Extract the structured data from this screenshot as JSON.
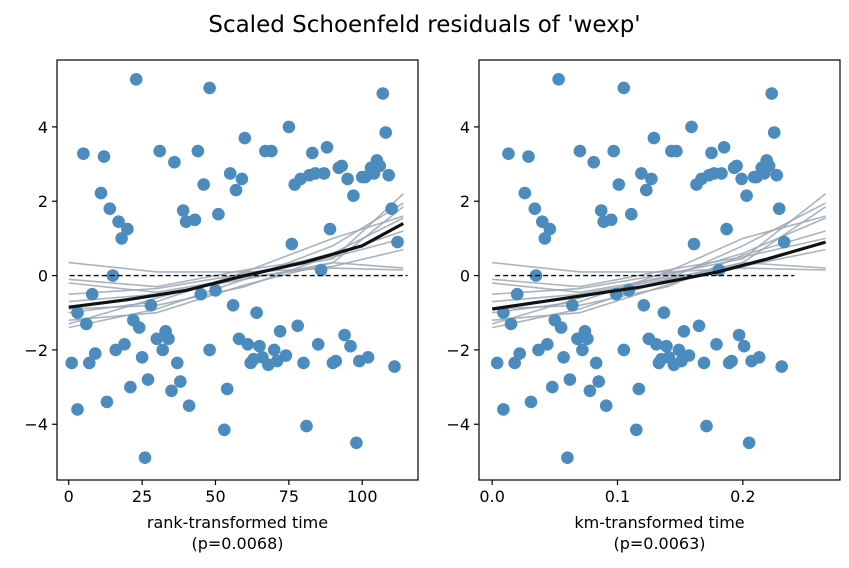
{
  "title": "Scaled Schoenfeld residuals of 'wexp'",
  "colors": {
    "points": "#4b8bbe",
    "lowess": "#111111",
    "bootstrap": "#9aa7b4",
    "zero_line": "#000000"
  },
  "chart_data": [
    {
      "type": "scatter",
      "xlabel": "rank-transformed time",
      "note": "(p=0.0068)",
      "xlim": [
        -4,
        119
      ],
      "ylim": [
        -5.5,
        5.8
      ],
      "xticks": [
        0,
        25,
        50,
        75,
        100
      ],
      "xtick_labels": [
        "0",
        "25",
        "50",
        "75",
        "100"
      ],
      "yticks": [
        -4,
        -2,
        0,
        2,
        4
      ],
      "ytick_labels": [
        "−4",
        "−2",
        "0",
        "2",
        "4"
      ],
      "reference_line_y": 0,
      "points": [
        [
          1,
          -2.35
        ],
        [
          3,
          -3.6
        ],
        [
          3,
          -1.0
        ],
        [
          5,
          3.28
        ],
        [
          6,
          -1.3
        ],
        [
          7,
          -2.35
        ],
        [
          8,
          -0.5
        ],
        [
          9,
          -2.1
        ],
        [
          11,
          2.22
        ],
        [
          12,
          3.2
        ],
        [
          13,
          -3.4
        ],
        [
          14,
          1.8
        ],
        [
          15,
          0.0
        ],
        [
          16,
          -2.0
        ],
        [
          17,
          1.45
        ],
        [
          18,
          1.0
        ],
        [
          19,
          -1.85
        ],
        [
          20,
          1.25
        ],
        [
          21,
          -3.0
        ],
        [
          22,
          -1.2
        ],
        [
          23,
          5.28
        ],
        [
          24,
          -1.4
        ],
        [
          25,
          -2.2
        ],
        [
          26,
          -4.9
        ],
        [
          27,
          -2.8
        ],
        [
          28,
          -0.8
        ],
        [
          30,
          -1.7
        ],
        [
          31,
          3.35
        ],
        [
          32,
          -2.0
        ],
        [
          33,
          -1.5
        ],
        [
          34,
          -1.7
        ],
        [
          35,
          -3.1
        ],
        [
          36,
          3.05
        ],
        [
          37,
          -2.35
        ],
        [
          38,
          -2.85
        ],
        [
          39,
          1.75
        ],
        [
          40,
          1.45
        ],
        [
          41,
          -3.5
        ],
        [
          43,
          1.5
        ],
        [
          44,
          3.35
        ],
        [
          45,
          -0.5
        ],
        [
          46,
          2.45
        ],
        [
          48,
          5.05
        ],
        [
          48,
          -2.0
        ],
        [
          50,
          -0.4
        ],
        [
          51,
          1.65
        ],
        [
          53,
          -4.15
        ],
        [
          54,
          -3.05
        ],
        [
          55,
          2.75
        ],
        [
          56,
          -0.8
        ],
        [
          57,
          2.3
        ],
        [
          58,
          -1.7
        ],
        [
          59,
          2.6
        ],
        [
          60,
          3.7
        ],
        [
          61,
          -1.85
        ],
        [
          62,
          -2.35
        ],
        [
          63,
          -2.25
        ],
        [
          64,
          -1.0
        ],
        [
          65,
          -1.9
        ],
        [
          66,
          -2.2
        ],
        [
          67,
          3.35
        ],
        [
          68,
          -2.4
        ],
        [
          69,
          3.35
        ],
        [
          70,
          -2.0
        ],
        [
          71,
          -2.3
        ],
        [
          72,
          -1.5
        ],
        [
          74,
          -2.15
        ],
        [
          75,
          4.0
        ],
        [
          76,
          0.85
        ],
        [
          77,
          2.45
        ],
        [
          78,
          -1.35
        ],
        [
          79,
          2.6
        ],
        [
          80,
          -2.35
        ],
        [
          81,
          -4.05
        ],
        [
          82,
          2.7
        ],
        [
          83,
          3.3
        ],
        [
          84,
          2.75
        ],
        [
          85,
          -1.85
        ],
        [
          86,
          0.15
        ],
        [
          87,
          2.75
        ],
        [
          88,
          3.45
        ],
        [
          89,
          1.25
        ],
        [
          90,
          -2.35
        ],
        [
          91,
          -2.3
        ],
        [
          92,
          2.9
        ],
        [
          93,
          2.95
        ],
        [
          94,
          -1.6
        ],
        [
          95,
          2.6
        ],
        [
          96,
          -1.9
        ],
        [
          97,
          2.15
        ],
        [
          98,
          -4.5
        ],
        [
          99,
          -2.3
        ],
        [
          100,
          2.65
        ],
        [
          101,
          2.65
        ],
        [
          102,
          -2.2
        ],
        [
          103,
          2.9
        ],
        [
          104,
          2.75
        ],
        [
          105,
          3.1
        ],
        [
          106,
          2.95
        ],
        [
          107,
          4.9
        ],
        [
          108,
          3.85
        ],
        [
          109,
          2.7
        ],
        [
          110,
          1.8
        ],
        [
          111,
          -2.45
        ],
        [
          112,
          0.9
        ]
      ],
      "lowess": [
        [
          0,
          -0.85
        ],
        [
          20,
          -0.65
        ],
        [
          40,
          -0.4
        ],
        [
          60,
          0.0
        ],
        [
          80,
          0.35
        ],
        [
          100,
          0.8
        ],
        [
          114,
          1.4
        ]
      ],
      "bootstrap_lowess": [
        [
          [
            0,
            -0.5
          ],
          [
            30,
            -0.35
          ],
          [
            60,
            0.05
          ],
          [
            90,
            0.45
          ],
          [
            114,
            2.2
          ]
        ],
        [
          [
            0,
            -1.4
          ],
          [
            30,
            -0.9
          ],
          [
            60,
            -0.1
          ],
          [
            90,
            0.8
          ],
          [
            114,
            1.95
          ]
        ],
        [
          [
            0,
            -1.2
          ],
          [
            30,
            -1.0
          ],
          [
            60,
            -0.25
          ],
          [
            90,
            0.35
          ],
          [
            114,
            1.85
          ]
        ],
        [
          [
            0,
            0.35
          ],
          [
            30,
            0.1
          ],
          [
            60,
            0.1
          ],
          [
            90,
            0.2
          ],
          [
            114,
            0.15
          ]
        ],
        [
          [
            0,
            -0.1
          ],
          [
            30,
            -0.3
          ],
          [
            60,
            0.15
          ],
          [
            90,
            0.5
          ],
          [
            114,
            1.0
          ]
        ],
        [
          [
            0,
            -0.7
          ],
          [
            30,
            -0.5
          ],
          [
            60,
            -0.1
          ],
          [
            90,
            0.35
          ],
          [
            114,
            0.2
          ]
        ],
        [
          [
            0,
            -1.3
          ],
          [
            30,
            -0.6
          ],
          [
            60,
            0.0
          ],
          [
            90,
            0.6
          ],
          [
            114,
            1.55
          ]
        ],
        [
          [
            0,
            -1.0
          ],
          [
            30,
            -0.7
          ],
          [
            60,
            0.1
          ],
          [
            90,
            1.0
          ],
          [
            114,
            1.6
          ]
        ],
        [
          [
            0,
            -0.2
          ],
          [
            30,
            -0.45
          ],
          [
            60,
            -0.05
          ],
          [
            90,
            0.25
          ],
          [
            114,
            0.7
          ]
        ],
        [
          [
            0,
            -0.9
          ],
          [
            30,
            -0.8
          ],
          [
            60,
            -0.3
          ],
          [
            90,
            0.55
          ],
          [
            114,
            1.2
          ]
        ]
      ]
    },
    {
      "type": "scatter",
      "xlabel": "km-transformed time",
      "note": "(p=0.0063)",
      "xlim": [
        -0.0105,
        0.2775
      ],
      "ylim": [
        -5.5,
        5.8
      ],
      "xticks": [
        0.0,
        0.1,
        0.2
      ],
      "xtick_labels": [
        "0.0",
        "0.1",
        "0.2"
      ],
      "yticks": [
        -4,
        -2,
        0,
        2,
        4
      ],
      "ytick_labels": [
        "−4",
        "−2",
        "0",
        "2",
        "4"
      ],
      "reference_line_y": 0,
      "points": [
        [
          0.004,
          -2.35
        ],
        [
          0.009,
          -3.6
        ],
        [
          0.009,
          -1.0
        ],
        [
          0.013,
          3.28
        ],
        [
          0.015,
          -1.3
        ],
        [
          0.018,
          -2.35
        ],
        [
          0.02,
          -0.5
        ],
        [
          0.022,
          -2.1
        ],
        [
          0.026,
          2.22
        ],
        [
          0.029,
          3.2
        ],
        [
          0.031,
          -3.4
        ],
        [
          0.034,
          1.8
        ],
        [
          0.035,
          0.0
        ],
        [
          0.037,
          -2.0
        ],
        [
          0.04,
          1.45
        ],
        [
          0.042,
          1.0
        ],
        [
          0.044,
          -1.85
        ],
        [
          0.046,
          1.25
        ],
        [
          0.048,
          -3.0
        ],
        [
          0.05,
          -1.2
        ],
        [
          0.053,
          5.28
        ],
        [
          0.055,
          -1.4
        ],
        [
          0.057,
          -2.2
        ],
        [
          0.06,
          -4.9
        ],
        [
          0.062,
          -2.8
        ],
        [
          0.064,
          -0.8
        ],
        [
          0.068,
          -1.7
        ],
        [
          0.07,
          3.35
        ],
        [
          0.072,
          -2.0
        ],
        [
          0.074,
          -1.5
        ],
        [
          0.076,
          -1.7
        ],
        [
          0.078,
          -3.1
        ],
        [
          0.081,
          3.05
        ],
        [
          0.083,
          -2.35
        ],
        [
          0.085,
          -2.85
        ],
        [
          0.087,
          1.75
        ],
        [
          0.089,
          1.45
        ],
        [
          0.091,
          -3.5
        ],
        [
          0.095,
          1.5
        ],
        [
          0.097,
          3.35
        ],
        [
          0.099,
          -0.5
        ],
        [
          0.101,
          2.45
        ],
        [
          0.105,
          5.05
        ],
        [
          0.105,
          -2.0
        ],
        [
          0.109,
          -0.4
        ],
        [
          0.111,
          1.65
        ],
        [
          0.115,
          -4.15
        ],
        [
          0.117,
          -3.05
        ],
        [
          0.119,
          2.75
        ],
        [
          0.121,
          -0.8
        ],
        [
          0.123,
          2.3
        ],
        [
          0.125,
          -1.7
        ],
        [
          0.127,
          2.6
        ],
        [
          0.129,
          3.7
        ],
        [
          0.131,
          -1.85
        ],
        [
          0.133,
          -2.35
        ],
        [
          0.135,
          -2.25
        ],
        [
          0.137,
          -1.0
        ],
        [
          0.139,
          -1.9
        ],
        [
          0.141,
          -2.2
        ],
        [
          0.143,
          3.35
        ],
        [
          0.145,
          -2.4
        ],
        [
          0.147,
          3.35
        ],
        [
          0.149,
          -2.0
        ],
        [
          0.151,
          -2.3
        ],
        [
          0.153,
          -1.5
        ],
        [
          0.157,
          -2.15
        ],
        [
          0.159,
          4.0
        ],
        [
          0.161,
          0.85
        ],
        [
          0.163,
          2.45
        ],
        [
          0.165,
          -1.35
        ],
        [
          0.167,
          2.6
        ],
        [
          0.169,
          -2.35
        ],
        [
          0.171,
          -4.05
        ],
        [
          0.173,
          2.7
        ],
        [
          0.175,
          3.3
        ],
        [
          0.177,
          2.75
        ],
        [
          0.179,
          -1.85
        ],
        [
          0.181,
          0.15
        ],
        [
          0.183,
          2.75
        ],
        [
          0.185,
          3.45
        ],
        [
          0.187,
          1.25
        ],
        [
          0.189,
          -2.35
        ],
        [
          0.191,
          -2.3
        ],
        [
          0.193,
          2.9
        ],
        [
          0.195,
          2.95
        ],
        [
          0.197,
          -1.6
        ],
        [
          0.199,
          2.6
        ],
        [
          0.201,
          -1.9
        ],
        [
          0.203,
          2.15
        ],
        [
          0.205,
          -4.5
        ],
        [
          0.207,
          -2.3
        ],
        [
          0.209,
          2.65
        ],
        [
          0.211,
          2.65
        ],
        [
          0.213,
          -2.2
        ],
        [
          0.215,
          2.9
        ],
        [
          0.217,
          2.75
        ],
        [
          0.219,
          3.1
        ],
        [
          0.221,
          2.95
        ],
        [
          0.223,
          4.9
        ],
        [
          0.225,
          3.85
        ],
        [
          0.227,
          2.7
        ],
        [
          0.229,
          1.8
        ],
        [
          0.231,
          -2.45
        ],
        [
          0.233,
          0.9
        ]
      ],
      "lowess": [
        [
          0.0,
          -0.9
        ],
        [
          0.06,
          -0.6
        ],
        [
          0.12,
          -0.3
        ],
        [
          0.18,
          0.1
        ],
        [
          0.22,
          0.45
        ],
        [
          0.266,
          0.9
        ]
      ],
      "bootstrap_lowess": [
        [
          [
            0.0,
            -0.5
          ],
          [
            0.07,
            -0.35
          ],
          [
            0.14,
            0.05
          ],
          [
            0.2,
            0.45
          ],
          [
            0.266,
            2.2
          ]
        ],
        [
          [
            0.0,
            -1.4
          ],
          [
            0.07,
            -0.9
          ],
          [
            0.14,
            -0.1
          ],
          [
            0.2,
            0.8
          ],
          [
            0.266,
            1.95
          ]
        ],
        [
          [
            0.0,
            -1.2
          ],
          [
            0.07,
            -1.0
          ],
          [
            0.14,
            -0.25
          ],
          [
            0.2,
            0.35
          ],
          [
            0.266,
            1.85
          ]
        ],
        [
          [
            0.0,
            0.35
          ],
          [
            0.07,
            0.1
          ],
          [
            0.14,
            0.1
          ],
          [
            0.2,
            0.2
          ],
          [
            0.266,
            0.15
          ]
        ],
        [
          [
            0.0,
            -0.1
          ],
          [
            0.07,
            -0.3
          ],
          [
            0.14,
            0.15
          ],
          [
            0.2,
            0.5
          ],
          [
            0.266,
            1.0
          ]
        ],
        [
          [
            0.0,
            -0.7
          ],
          [
            0.07,
            -0.5
          ],
          [
            0.14,
            -0.1
          ],
          [
            0.2,
            0.35
          ],
          [
            0.266,
            0.2
          ]
        ],
        [
          [
            0.0,
            -1.3
          ],
          [
            0.07,
            -0.6
          ],
          [
            0.14,
            0.0
          ],
          [
            0.2,
            0.6
          ],
          [
            0.266,
            1.55
          ]
        ],
        [
          [
            0.0,
            -1.0
          ],
          [
            0.07,
            -0.7
          ],
          [
            0.14,
            0.1
          ],
          [
            0.2,
            1.0
          ],
          [
            0.266,
            1.6
          ]
        ],
        [
          [
            0.0,
            -0.2
          ],
          [
            0.07,
            -0.45
          ],
          [
            0.14,
            -0.05
          ],
          [
            0.2,
            0.25
          ],
          [
            0.266,
            0.7
          ]
        ],
        [
          [
            0.0,
            -0.9
          ],
          [
            0.07,
            -0.8
          ],
          [
            0.14,
            -0.3
          ],
          [
            0.2,
            0.55
          ],
          [
            0.266,
            1.2
          ]
        ]
      ]
    }
  ]
}
